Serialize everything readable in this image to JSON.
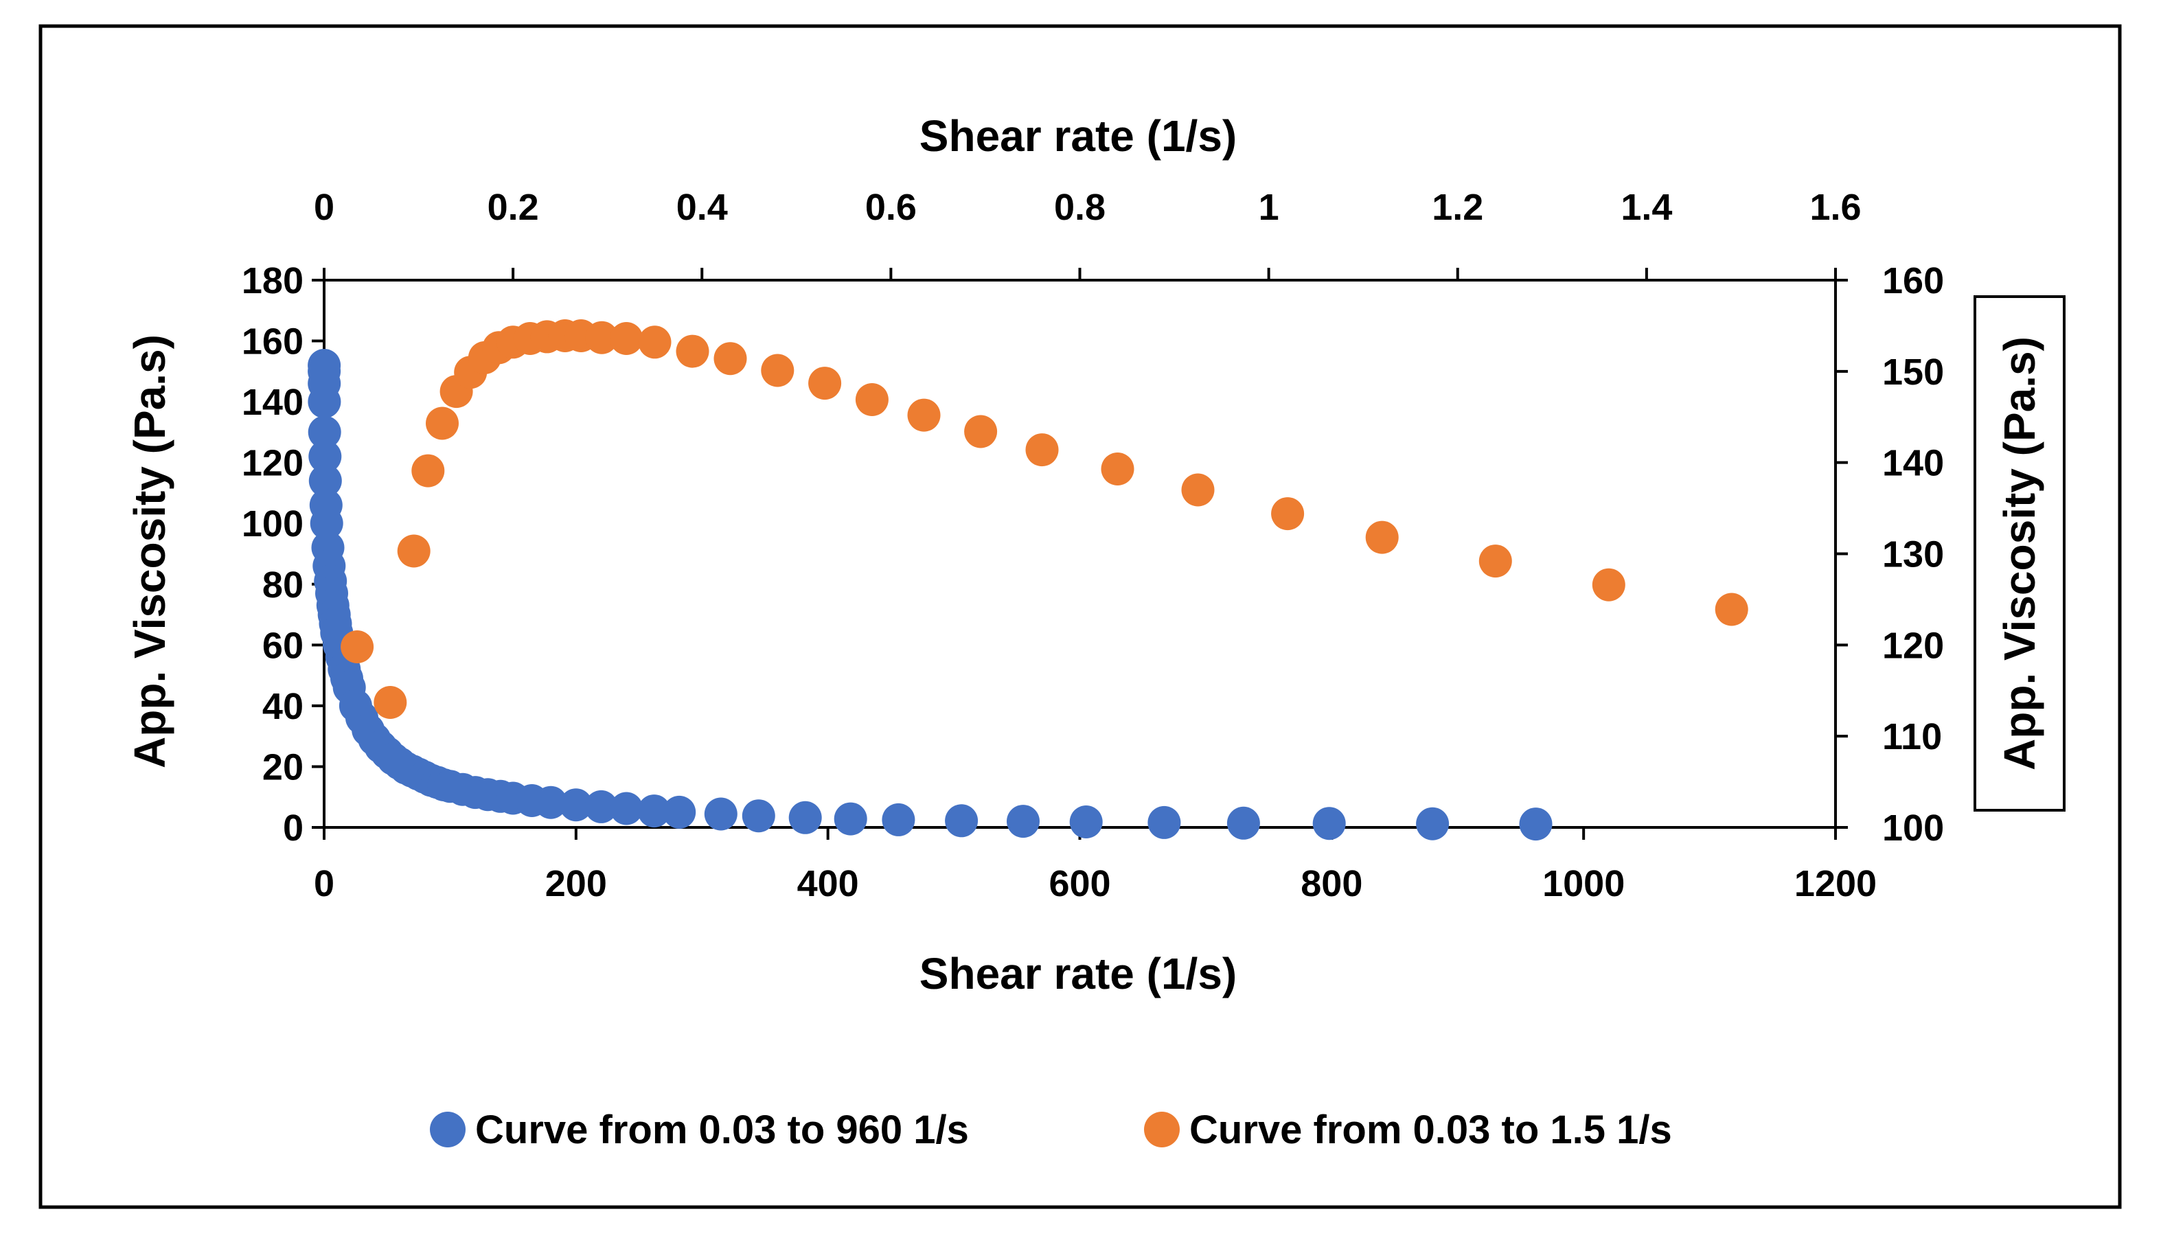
{
  "chart_data": {
    "type": "scatter",
    "x_axis_bottom": {
      "label": "Shear rate (1/s)",
      "range": [
        0,
        1200
      ],
      "ticks": [
        0,
        200,
        400,
        600,
        800,
        1000,
        1200
      ]
    },
    "x_axis_top": {
      "label": "Shear rate (1/s)",
      "range": [
        0,
        1.6
      ],
      "ticks": [
        0,
        0.2,
        0.4,
        0.6,
        0.8,
        1,
        1.2,
        1.4,
        1.6
      ],
      "tick_labels": [
        "0",
        "0.2",
        "0.4",
        "0.6",
        "0.8",
        "1",
        "1.2",
        "1.4",
        "1.6"
      ]
    },
    "y_axis_left": {
      "label": "App. Viscosity (Pa.s)",
      "range": [
        0,
        180
      ],
      "ticks": [
        0,
        20,
        40,
        60,
        80,
        100,
        120,
        140,
        160,
        180
      ]
    },
    "y_axis_right": {
      "label": "App. Viscosity (Pa.s)",
      "range": [
        100,
        160
      ],
      "ticks": [
        100,
        110,
        120,
        130,
        140,
        150,
        160
      ]
    },
    "legend_position": "bottom",
    "series": [
      {
        "name": "Curve from 0.03 to 960 1/s",
        "color": "#4472C4",
        "x_axis": "bottom",
        "y_axis": "left",
        "x": [
          0.03,
          0.06,
          0.1,
          0.2,
          0.4,
          0.7,
          1,
          1.5,
          2,
          3,
          4,
          5,
          6,
          7,
          8,
          9,
          10,
          12,
          14,
          16,
          18,
          20,
          25,
          30,
          35,
          40,
          45,
          50,
          55,
          60,
          65,
          70,
          75,
          80,
          85,
          90,
          95,
          100,
          110,
          120,
          130,
          140,
          150,
          165,
          180,
          200,
          220,
          240,
          262,
          282,
          315,
          345,
          382,
          418,
          456,
          506,
          555,
          605,
          667,
          730,
          798,
          880,
          962
        ],
        "y": [
          152,
          150,
          146,
          140,
          130,
          122,
          114,
          106,
          100,
          92,
          86,
          81,
          77,
          73,
          70,
          67,
          64,
          60,
          56,
          52,
          49,
          46,
          40,
          36,
          32,
          29,
          26.5,
          24.5,
          22.5,
          21,
          19.5,
          18.5,
          17.5,
          16.5,
          15.5,
          14.8,
          14,
          13.5,
          12.5,
          11.5,
          10.8,
          10.2,
          9.6,
          8.8,
          8.2,
          7.4,
          6.8,
          6.2,
          5.4,
          5,
          4.4,
          3.8,
          3.2,
          2.8,
          2.5,
          2.2,
          2,
          1.8,
          1.6,
          1.4,
          1.3,
          1.2,
          1.1
        ]
      },
      {
        "name": "Curve from 0.03 to 1.5 1/s",
        "color": "#ED7D31",
        "x_axis": "top",
        "y_axis": "right",
        "x": [
          0.035,
          0.07,
          0.095,
          0.11,
          0.125,
          0.14,
          0.155,
          0.17,
          0.185,
          0.2,
          0.218,
          0.236,
          0.255,
          0.272,
          0.294,
          0.32,
          0.35,
          0.39,
          0.43,
          0.48,
          0.53,
          0.58,
          0.635,
          0.695,
          0.76,
          0.84,
          0.925,
          1.02,
          1.12,
          1.24,
          1.36,
          1.49
        ],
        "y": [
          119.8,
          113.7,
          130.3,
          139.1,
          144.3,
          147.8,
          149.9,
          151.5,
          152.6,
          153.2,
          153.6,
          153.8,
          153.9,
          153.9,
          153.7,
          153.6,
          153.2,
          152.2,
          151.4,
          150.1,
          148.7,
          146.9,
          145.2,
          143.4,
          141.4,
          139.3,
          137,
          134.4,
          131.8,
          129.2,
          126.6,
          123.9
        ]
      }
    ]
  }
}
